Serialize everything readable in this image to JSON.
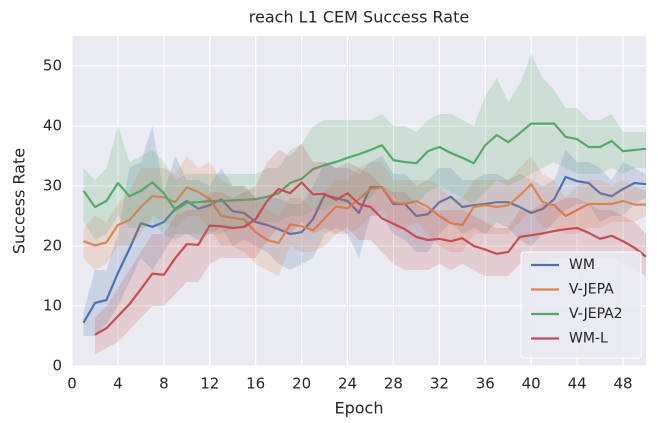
{
  "chart_data": {
    "type": "line",
    "title": "reach L1 CEM Success Rate",
    "x_label": "Epoch",
    "y_label": "Success Rate",
    "x": [
      1,
      2,
      3,
      4,
      5,
      6,
      7,
      8,
      9,
      10,
      11,
      12,
      13,
      14,
      15,
      16,
      17,
      18,
      19,
      20,
      21,
      22,
      23,
      24,
      25,
      26,
      27,
      28,
      29,
      30,
      31,
      32,
      33,
      34,
      35,
      36,
      37,
      38,
      39,
      40,
      41,
      42,
      43,
      44,
      45,
      46,
      47,
      48,
      49,
      50
    ],
    "xlim": [
      0,
      50
    ],
    "xticks": [
      0,
      4,
      8,
      12,
      16,
      20,
      24,
      28,
      32,
      36,
      40,
      44,
      48
    ],
    "ylim": [
      0,
      55
    ],
    "yticks": [
      0,
      10,
      20,
      30,
      40,
      50
    ],
    "grid": true,
    "legend": "lower right",
    "series": [
      {
        "name": "WM",
        "color": "#4c72b0",
        "values": [
          7.2,
          10.5,
          11,
          15.5,
          19.5,
          23.8,
          23.2,
          24,
          26.2,
          27.5,
          26.2,
          26.8,
          27.8,
          25.8,
          25.5,
          24,
          23.5,
          22.8,
          22,
          22.3,
          24.5,
          28.5,
          28,
          27.5,
          25.5,
          29.8,
          29.8,
          27,
          27,
          25,
          25.3,
          27.3,
          28.2,
          26.5,
          26.8,
          27,
          27.3,
          27.3,
          26.5,
          25.5,
          26.2,
          27.8,
          31.5,
          30.8,
          30.5,
          28.8,
          28.3,
          29.5,
          30.5,
          30.3
        ],
        "lower": [
          5,
          5,
          7,
          10,
          14,
          18,
          16,
          19,
          22,
          22,
          21,
          22,
          23,
          20,
          21,
          20,
          19,
          17,
          16,
          17,
          18,
          22,
          23,
          22,
          18,
          25,
          25,
          22,
          21,
          19,
          19,
          22,
          24,
          22,
          23,
          22,
          24,
          23,
          21,
          20,
          22,
          24,
          26,
          27,
          27,
          24,
          25,
          25,
          27,
          28
        ],
        "upper": [
          9,
          16,
          16,
          22,
          33,
          34,
          40,
          29,
          35,
          31,
          31,
          30,
          33,
          30,
          30,
          28,
          28,
          28,
          27,
          27,
          30,
          34,
          33,
          33,
          32,
          34,
          35,
          32,
          32,
          30,
          31,
          33,
          33,
          31,
          31,
          32,
          32,
          31,
          32,
          31,
          30,
          31,
          36,
          34,
          34,
          33,
          31,
          34,
          33,
          32
        ]
      },
      {
        "name": "V-JEPA",
        "color": "#dd8452",
        "values": [
          20.8,
          20.1,
          20.6,
          23.5,
          24.3,
          26.5,
          28.3,
          28.1,
          27.3,
          29.8,
          29,
          27.8,
          25,
          24.7,
          24.4,
          22.3,
          21,
          20.5,
          23.6,
          23.3,
          22.6,
          24.6,
          26.6,
          26.3,
          27.8,
          29.5,
          29.8,
          27.3,
          27,
          27.5,
          26.5,
          25,
          23.8,
          23.5,
          26.5,
          26.8,
          26.5,
          26.8,
          28.4,
          30.3,
          27.3,
          26.8,
          25,
          26,
          27,
          27,
          27,
          27.5,
          26.9,
          26.9
        ],
        "lower": [
          18,
          16,
          17,
          20,
          20,
          22,
          25,
          24,
          23,
          25,
          25,
          23,
          20,
          20,
          19,
          17,
          16,
          15,
          20,
          19,
          19,
          20,
          22,
          22,
          23,
          25,
          26,
          23,
          23,
          24,
          22,
          20,
          19,
          19,
          22,
          22,
          22,
          22,
          24,
          26,
          23,
          23,
          22,
          22,
          23,
          23,
          24,
          24,
          24,
          25
        ],
        "upper": [
          23,
          25,
          24,
          27,
          29,
          33,
          33,
          33,
          32,
          35,
          33,
          34,
          31,
          30,
          30,
          28,
          26,
          25,
          28,
          28,
          26,
          29,
          31,
          31,
          33,
          34,
          34,
          31,
          31,
          31,
          31,
          30,
          28,
          28,
          31,
          31,
          31,
          31,
          33,
          35,
          32,
          31,
          28,
          30,
          31,
          31,
          30,
          31,
          30,
          29
        ]
      },
      {
        "name": "V-JEPA2",
        "color": "#55a868",
        "values": [
          29.2,
          26.5,
          27.5,
          30.5,
          28.3,
          29.2,
          30.6,
          28.8,
          26,
          27.2,
          27.3,
          27.5,
          27.5,
          27.6,
          27.7,
          27.8,
          28.2,
          28.8,
          30.5,
          31.2,
          32.8,
          33.5,
          34,
          34.7,
          35.3,
          36,
          36.8,
          34.3,
          34,
          33.8,
          35.8,
          36.5,
          35.5,
          34.7,
          33.8,
          36.8,
          38.5,
          37.3,
          38.8,
          40.4,
          40.4,
          40.4,
          38.2,
          37.8,
          36.5,
          36.5,
          37.5,
          35.8,
          36,
          36.2
        ],
        "lower": [
          24,
          21,
          22,
          25,
          23,
          23,
          24,
          22,
          21,
          22,
          22,
          22,
          22,
          23,
          23,
          24,
          24,
          24,
          25,
          25,
          26,
          26,
          27,
          27,
          28,
          28,
          30,
          28,
          27,
          27,
          29,
          30,
          29,
          28,
          27,
          29,
          31,
          30,
          31,
          32,
          33,
          34,
          33,
          32,
          32,
          32,
          33,
          32,
          33,
          33
        ],
        "upper": [
          33,
          31,
          33,
          40,
          34,
          35,
          36,
          34,
          31,
          32,
          32,
          32,
          32,
          32,
          32,
          32,
          33,
          33,
          36,
          37,
          40,
          41,
          41,
          41,
          41,
          41,
          42,
          40,
          40,
          39,
          41,
          42,
          42,
          41,
          40,
          45,
          48,
          44,
          47,
          52,
          48,
          46,
          43,
          43,
          41,
          41,
          42,
          39,
          39,
          39
        ]
      },
      {
        "name": "WM-L",
        "color": "#c44e52",
        "values": [
          null,
          5.2,
          6.3,
          8.3,
          10.3,
          12.8,
          15.4,
          15.2,
          18,
          20.3,
          20.2,
          23.4,
          23.3,
          23,
          23.2,
          24.5,
          27.5,
          29.5,
          28.8,
          30.6,
          28.6,
          28.7,
          27.7,
          28.8,
          27,
          26.5,
          24.6,
          23.7,
          22.8,
          21.5,
          21,
          21.2,
          20.8,
          21.3,
          20,
          19.4,
          18.7,
          19,
          21.5,
          21.8,
          22.1,
          22.5,
          22.8,
          23,
          22.2,
          21.2,
          21.7,
          20.8,
          19.7,
          18.2
        ],
        "lower": [
          null,
          2,
          3,
          4,
          6,
          8,
          10,
          10,
          12,
          14,
          14,
          17,
          18,
          18,
          18,
          18,
          21,
          23,
          22,
          24,
          22,
          23,
          22,
          23,
          21,
          21,
          19,
          17,
          16,
          16,
          16,
          17,
          16,
          17,
          16,
          15,
          15,
          15,
          17,
          17,
          17,
          18,
          18,
          18,
          18,
          18,
          18,
          17,
          16,
          15
        ],
        "upper": [
          null,
          8,
          10,
          13,
          16,
          19,
          22,
          22,
          25,
          26,
          26,
          29,
          29,
          28,
          29,
          30,
          34,
          36,
          35,
          37,
          34,
          34,
          33,
          34,
          33,
          32,
          30,
          29,
          29,
          27,
          26,
          26,
          26,
          26,
          25,
          24,
          23,
          23,
          26,
          26,
          27,
          27,
          28,
          28,
          27,
          26,
          26,
          25,
          24,
          22
        ]
      }
    ]
  }
}
